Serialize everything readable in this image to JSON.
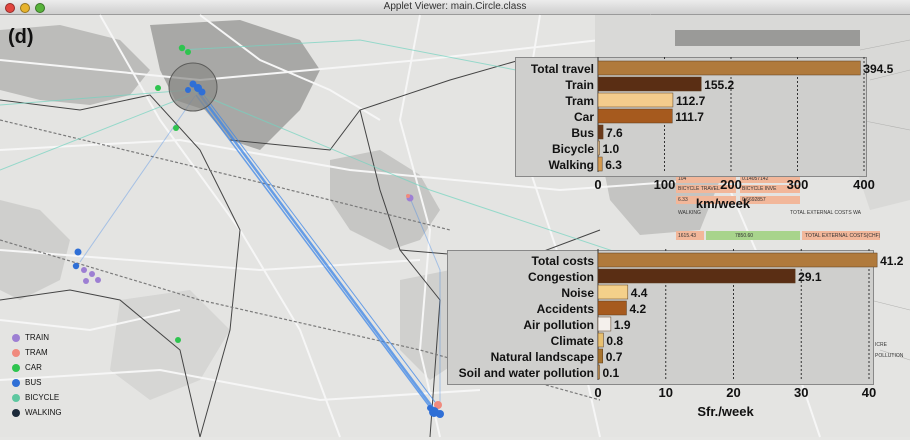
{
  "window": {
    "title": "Applet Viewer: main.Circle.class",
    "controls": {
      "close_color": "#e2463f",
      "minimize_color": "#e7b32c",
      "zoom_color": "#58b33b"
    }
  },
  "panel_label": "(d)",
  "legend": [
    {
      "label": "TRAIN",
      "color": "#9d7fd3"
    },
    {
      "label": "TRAM",
      "color": "#f08a7e"
    },
    {
      "label": "CAR",
      "color": "#2ec44f"
    },
    {
      "label": "BUS",
      "color": "#2f6fd6"
    },
    {
      "label": "BICYCLE",
      "color": "#5dc7a0"
    },
    {
      "label": "WALKING",
      "color": "#1c2a3a"
    }
  ],
  "background_labels": {
    "row1": [
      "104",
      "0.14057142"
    ],
    "row2": [
      "BICYCLE TRAVEL",
      "BICYCLE INVE"
    ],
    "row3": [
      "6.33",
      "0.6692857"
    ],
    "row4": [
      "WALKING",
      "TOTAL EXTERNAL COSTS WA"
    ],
    "row5": [
      "1615.43",
      "7850.60",
      "TOTAL EXTERNAL COSTS(CHF)"
    ],
    "right": [
      "ICRE",
      "POLLUTION"
    ]
  },
  "chart_data": [
    {
      "type": "bar",
      "orientation": "horizontal",
      "categories": [
        "Total travel",
        "Train",
        "Tram",
        "Car",
        "Bus",
        "Bicycle",
        "Walking"
      ],
      "values": [
        394.5,
        155.2,
        112.7,
        111.7,
        7.6,
        1.0,
        6.3
      ],
      "value_labels": [
        "394.5",
        "155.2",
        "112.7",
        "111.7",
        "7.6",
        "1.0",
        "6.3"
      ],
      "colors": [
        "#b07a3c",
        "#5a2e14",
        "#f4cc8c",
        "#a65a1e",
        "#6b3a1a",
        "#e8c898",
        "#d49a50"
      ],
      "xlabel": "km/week",
      "xlim": [
        0,
        400
      ],
      "xticks": [
        0,
        100,
        200,
        300,
        400
      ],
      "grid": "vertical dotted"
    },
    {
      "type": "bar",
      "orientation": "horizontal",
      "categories": [
        "Total costs",
        "Congestion",
        "Noise",
        "Accidents",
        "Air pollution",
        "Climate",
        "Natural landscape",
        "Soil and water pollution"
      ],
      "values": [
        41.2,
        29.1,
        4.4,
        4.2,
        1.9,
        0.8,
        0.7,
        0.1
      ],
      "value_labels": [
        "41.2",
        "29.1",
        "4.4",
        "4.2",
        "1.9",
        "0.8",
        "0.7",
        "0.1"
      ],
      "colors": [
        "#b07a3c",
        "#5a2e14",
        "#f4d08a",
        "#a65a1e",
        "#f4f0ec",
        "#e8c070",
        "#a8742e",
        "#c89858"
      ],
      "xlabel": "Sfr./week",
      "xlim": [
        0,
        40
      ],
      "xticks": [
        0,
        10,
        20,
        30,
        40
      ],
      "grid": "vertical dotted"
    }
  ]
}
